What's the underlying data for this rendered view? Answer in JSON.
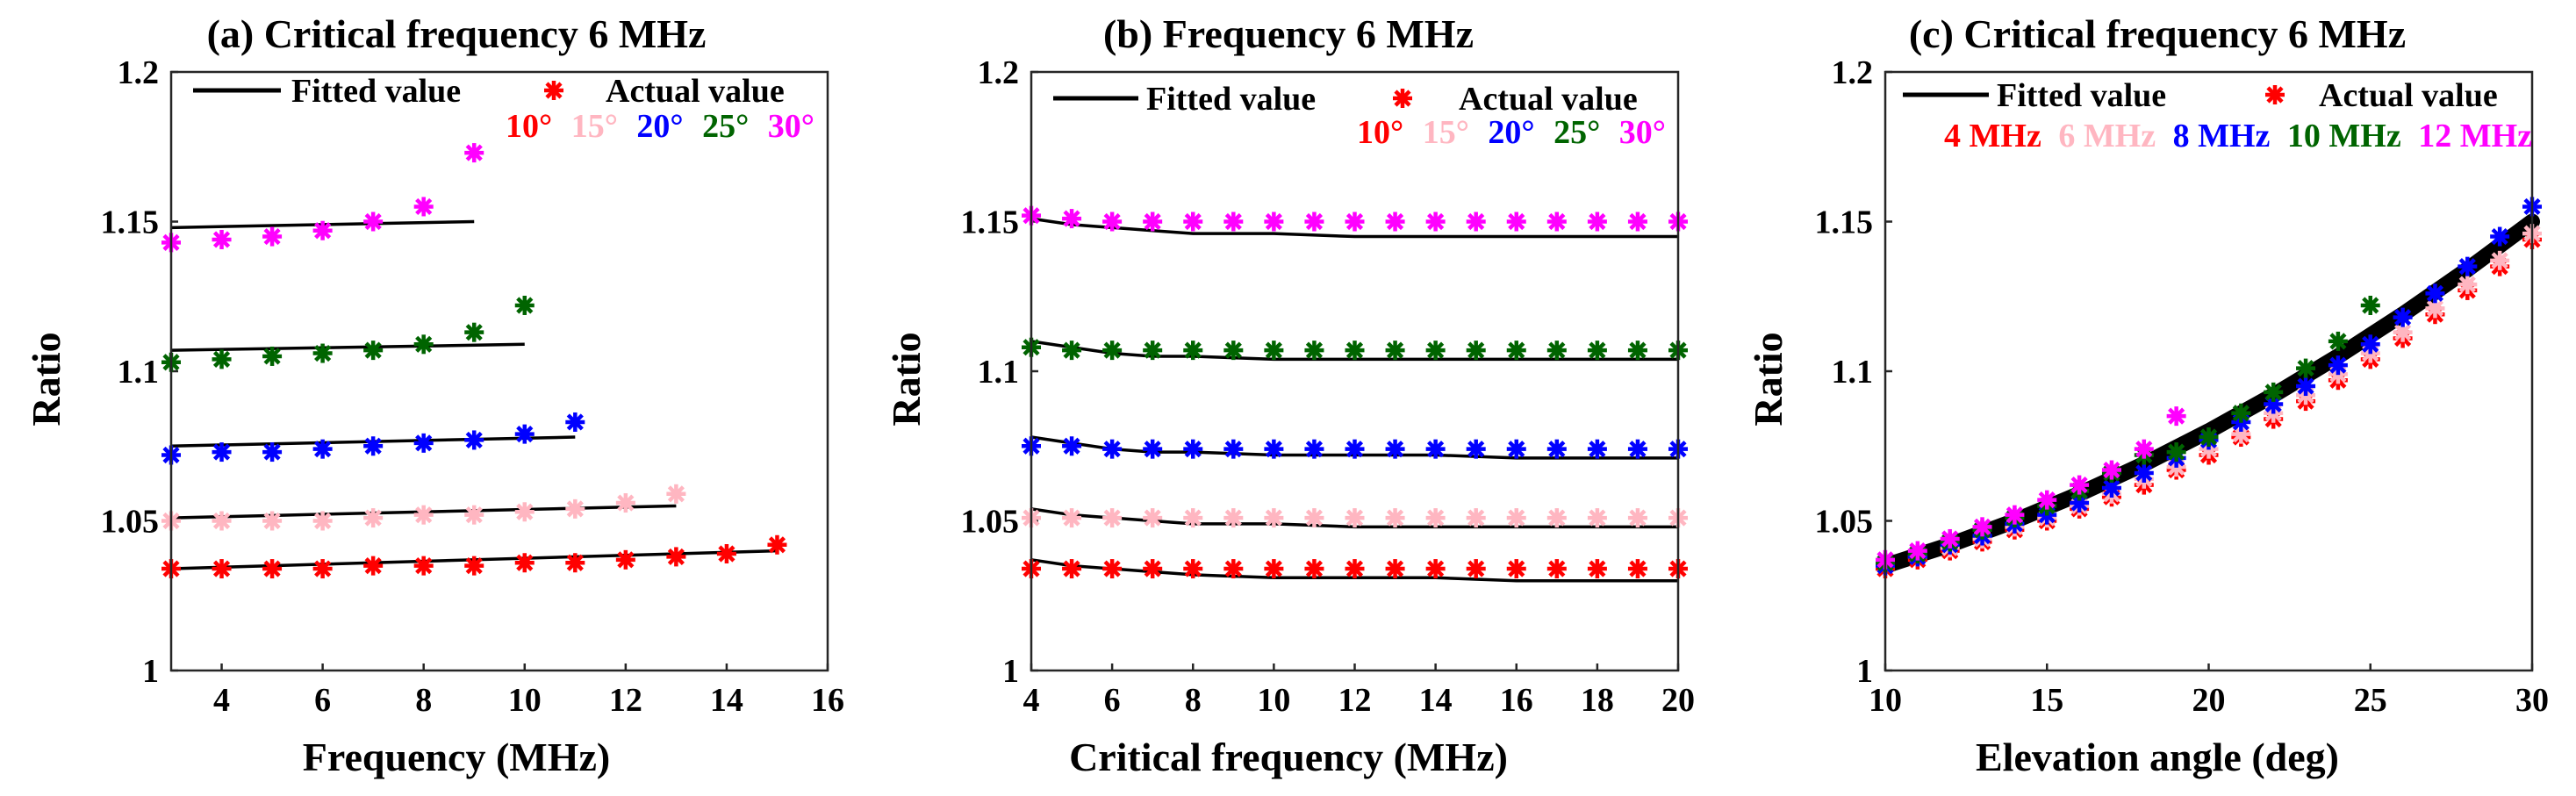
{
  "colors": {
    "10": "#ff0000",
    "15": "#ffb6c1",
    "20": "#0000ff",
    "25": "#006400",
    "30": "#ff00ff",
    "fit": "#000000",
    "marker": "#ff0000"
  },
  "chart_data": [
    {
      "type": "scatter+line",
      "title": "(a) Critical frequency 6 MHz",
      "xlabel": "Frequency (MHz)",
      "ylabel": "Ratio",
      "xlim": [
        3,
        16
      ],
      "ylim": [
        1,
        1.2
      ],
      "xticks": [
        "4",
        "6",
        "8",
        "10",
        "12",
        "14",
        "16"
      ],
      "yticks": [
        "1",
        "1.05",
        "1.1",
        "1.15",
        "1.2"
      ],
      "legend": {
        "fitted": "Fitted value",
        "actual": "Actual value"
      },
      "category_labels": [
        "10°",
        "15°",
        "20°",
        "25°",
        "30°"
      ],
      "series": [
        {
          "name": "10°",
          "color_key": "10",
          "x": [
            3,
            4,
            5,
            6,
            7,
            8,
            9,
            10,
            11,
            12,
            13,
            14,
            15
          ],
          "actual": [
            1.034,
            1.034,
            1.034,
            1.034,
            1.035,
            1.035,
            1.035,
            1.036,
            1.036,
            1.037,
            1.038,
            1.039,
            1.042
          ],
          "fit_x": [
            3,
            15
          ],
          "fit_y": [
            1.034,
            1.04
          ]
        },
        {
          "name": "15°",
          "color_key": "15",
          "x": [
            3,
            4,
            5,
            6,
            7,
            8,
            9,
            10,
            11,
            12,
            13
          ],
          "actual": [
            1.05,
            1.05,
            1.05,
            1.05,
            1.051,
            1.052,
            1.052,
            1.053,
            1.054,
            1.056,
            1.059
          ],
          "fit_x": [
            3,
            13
          ],
          "fit_y": [
            1.051,
            1.055
          ]
        },
        {
          "name": "20°",
          "color_key": "20",
          "x": [
            3,
            4,
            5,
            6,
            7,
            8,
            9,
            10,
            11
          ],
          "actual": [
            1.072,
            1.073,
            1.073,
            1.074,
            1.075,
            1.076,
            1.077,
            1.079,
            1.083
          ],
          "fit_x": [
            3,
            11
          ],
          "fit_y": [
            1.075,
            1.078
          ]
        },
        {
          "name": "25°",
          "color_key": "25",
          "x": [
            3,
            4,
            5,
            6,
            7,
            8,
            9,
            10
          ],
          "actual": [
            1.103,
            1.104,
            1.105,
            1.106,
            1.107,
            1.109,
            1.113,
            1.122
          ],
          "fit_x": [
            3,
            10
          ],
          "fit_y": [
            1.107,
            1.109
          ]
        },
        {
          "name": "30°",
          "color_key": "30",
          "x": [
            3,
            4,
            5,
            6,
            7,
            8,
            9
          ],
          "actual": [
            1.143,
            1.144,
            1.145,
            1.147,
            1.15,
            1.155,
            1.173
          ],
          "fit_x": [
            3,
            9
          ],
          "fit_y": [
            1.148,
            1.15
          ]
        }
      ]
    },
    {
      "type": "scatter+line",
      "title": "(b) Frequency 6 MHz",
      "xlabel": "Critical frequency (MHz)",
      "ylabel": "Ratio",
      "xlim": [
        4,
        20
      ],
      "ylim": [
        1,
        1.2
      ],
      "xticks": [
        "4",
        "6",
        "8",
        "10",
        "12",
        "14",
        "16",
        "18",
        "20"
      ],
      "yticks": [
        "1",
        "1.05",
        "1.1",
        "1.15",
        "1.2"
      ],
      "legend": {
        "fitted": "Fitted value",
        "actual": "Actual value"
      },
      "category_labels": [
        "10°",
        "15°",
        "20°",
        "25°",
        "30°"
      ],
      "series": [
        {
          "name": "10°",
          "color_key": "10",
          "x": [
            4,
            5,
            6,
            7,
            8,
            9,
            10,
            11,
            12,
            13,
            14,
            15,
            16,
            17,
            18,
            19,
            20
          ],
          "actual": [
            1.034,
            1.034,
            1.034,
            1.034,
            1.034,
            1.034,
            1.034,
            1.034,
            1.034,
            1.034,
            1.034,
            1.034,
            1.034,
            1.034,
            1.034,
            1.034,
            1.034
          ],
          "fit_x": [
            4,
            5,
            6,
            7,
            8,
            10,
            12,
            14,
            16,
            18,
            20
          ],
          "fit_y": [
            1.037,
            1.035,
            1.034,
            1.033,
            1.032,
            1.031,
            1.031,
            1.031,
            1.03,
            1.03,
            1.03
          ]
        },
        {
          "name": "15°",
          "color_key": "15",
          "x": [
            4,
            5,
            6,
            7,
            8,
            9,
            10,
            11,
            12,
            13,
            14,
            15,
            16,
            17,
            18,
            19,
            20
          ],
          "actual": [
            1.051,
            1.051,
            1.051,
            1.051,
            1.051,
            1.051,
            1.051,
            1.051,
            1.051,
            1.051,
            1.051,
            1.051,
            1.051,
            1.051,
            1.051,
            1.051,
            1.051
          ],
          "fit_x": [
            4,
            5,
            6,
            7,
            8,
            10,
            12,
            14,
            16,
            18,
            20
          ],
          "fit_y": [
            1.054,
            1.052,
            1.051,
            1.05,
            1.049,
            1.049,
            1.048,
            1.048,
            1.048,
            1.048,
            1.048
          ]
        },
        {
          "name": "20°",
          "color_key": "20",
          "x": [
            4,
            5,
            6,
            7,
            8,
            9,
            10,
            11,
            12,
            13,
            14,
            15,
            16,
            17,
            18,
            19,
            20
          ],
          "actual": [
            1.075,
            1.075,
            1.074,
            1.074,
            1.074,
            1.074,
            1.074,
            1.074,
            1.074,
            1.074,
            1.074,
            1.074,
            1.074,
            1.074,
            1.074,
            1.074,
            1.074
          ],
          "fit_x": [
            4,
            5,
            6,
            7,
            8,
            10,
            12,
            14,
            16,
            18,
            20
          ],
          "fit_y": [
            1.078,
            1.076,
            1.074,
            1.073,
            1.073,
            1.072,
            1.072,
            1.072,
            1.071,
            1.071,
            1.071
          ]
        },
        {
          "name": "25°",
          "color_key": "25",
          "x": [
            4,
            5,
            6,
            7,
            8,
            9,
            10,
            11,
            12,
            13,
            14,
            15,
            16,
            17,
            18,
            19,
            20
          ],
          "actual": [
            1.108,
            1.107,
            1.107,
            1.107,
            1.107,
            1.107,
            1.107,
            1.107,
            1.107,
            1.107,
            1.107,
            1.107,
            1.107,
            1.107,
            1.107,
            1.107,
            1.107
          ],
          "fit_x": [
            4,
            5,
            6,
            7,
            8,
            10,
            12,
            14,
            16,
            18,
            20
          ],
          "fit_y": [
            1.11,
            1.108,
            1.106,
            1.105,
            1.105,
            1.104,
            1.104,
            1.104,
            1.104,
            1.104,
            1.104
          ]
        },
        {
          "name": "30°",
          "color_key": "30",
          "x": [
            4,
            5,
            6,
            7,
            8,
            9,
            10,
            11,
            12,
            13,
            14,
            15,
            16,
            17,
            18,
            19,
            20
          ],
          "actual": [
            1.152,
            1.151,
            1.15,
            1.15,
            1.15,
            1.15,
            1.15,
            1.15,
            1.15,
            1.15,
            1.15,
            1.15,
            1.15,
            1.15,
            1.15,
            1.15,
            1.15
          ],
          "fit_x": [
            4,
            5,
            6,
            7,
            8,
            10,
            12,
            14,
            16,
            18,
            20
          ],
          "fit_y": [
            1.151,
            1.149,
            1.148,
            1.147,
            1.146,
            1.146,
            1.145,
            1.145,
            1.145,
            1.145,
            1.145
          ]
        }
      ]
    },
    {
      "type": "scatter+line",
      "title": "(c) Critical frequency 6 MHz",
      "xlabel": "Elevation angle (deg)",
      "ylabel": "Ratio",
      "xlim": [
        10,
        30
      ],
      "ylim": [
        1,
        1.2
      ],
      "xticks": [
        "10",
        "15",
        "20",
        "25",
        "30"
      ],
      "yticks": [
        "1",
        "1.05",
        "1.1",
        "1.15",
        "1.2"
      ],
      "legend": {
        "fitted": "Fitted value",
        "actual": "Actual value"
      },
      "category_labels": [
        "4 MHz",
        "6 MHz",
        "8 MHz",
        "10 MHz",
        "12 MHz"
      ],
      "fit": {
        "x": [
          10,
          12,
          14,
          16,
          18,
          20,
          22,
          24,
          26,
          28,
          30
        ],
        "y": [
          1.035,
          1.042,
          1.05,
          1.059,
          1.069,
          1.08,
          1.092,
          1.105,
          1.119,
          1.134,
          1.15
        ]
      },
      "series": [
        {
          "name": "4 MHz",
          "color_key": "10",
          "x": [
            10,
            11,
            12,
            13,
            14,
            15,
            16,
            17,
            18,
            19,
            20,
            21,
            22,
            23,
            24,
            25,
            26,
            27,
            28,
            29,
            30
          ],
          "actual": [
            1.034,
            1.037,
            1.04,
            1.043,
            1.047,
            1.05,
            1.054,
            1.058,
            1.062,
            1.067,
            1.072,
            1.078,
            1.084,
            1.09,
            1.097,
            1.104,
            1.111,
            1.119,
            1.127,
            1.135,
            1.144
          ]
        },
        {
          "name": "6 MHz",
          "color_key": "15",
          "x": [
            10,
            11,
            12,
            13,
            14,
            15,
            16,
            17,
            18,
            19,
            20,
            21,
            22,
            23,
            24,
            25,
            26,
            27,
            28,
            29,
            30
          ],
          "actual": [
            1.035,
            1.038,
            1.041,
            1.044,
            1.048,
            1.051,
            1.055,
            1.059,
            1.064,
            1.068,
            1.074,
            1.079,
            1.086,
            1.092,
            1.099,
            1.106,
            1.113,
            1.121,
            1.129,
            1.137,
            1.146
          ]
        },
        {
          "name": "8 MHz",
          "color_key": "20",
          "x": [
            10,
            11,
            12,
            13,
            14,
            15,
            16,
            17,
            18,
            19,
            20,
            21,
            22,
            23,
            24,
            25,
            26,
            27,
            28,
            29,
            30
          ],
          "actual": [
            1.035,
            1.038,
            1.042,
            1.045,
            1.049,
            1.052,
            1.056,
            1.061,
            1.066,
            1.071,
            1.077,
            1.083,
            1.089,
            1.095,
            1.102,
            1.109,
            1.118,
            1.126,
            1.135,
            1.145,
            1.155
          ]
        },
        {
          "name": "10 MHz",
          "color_key": "25",
          "x": [
            10,
            11,
            12,
            13,
            14,
            15,
            16,
            17,
            18,
            19,
            20,
            21,
            22,
            23,
            24,
            25
          ],
          "actual": [
            1.036,
            1.039,
            1.043,
            1.047,
            1.051,
            1.055,
            1.06,
            1.066,
            1.072,
            1.073,
            1.078,
            1.086,
            1.093,
            1.101,
            1.11,
            1.122
          ]
        },
        {
          "name": "12 MHz",
          "color_key": "30",
          "x": [
            10,
            11,
            12,
            13,
            14,
            15,
            16,
            17,
            18,
            19
          ],
          "actual": [
            1.037,
            1.04,
            1.044,
            1.048,
            1.052,
            1.057,
            1.062,
            1.067,
            1.074,
            1.085
          ]
        }
      ]
    }
  ]
}
